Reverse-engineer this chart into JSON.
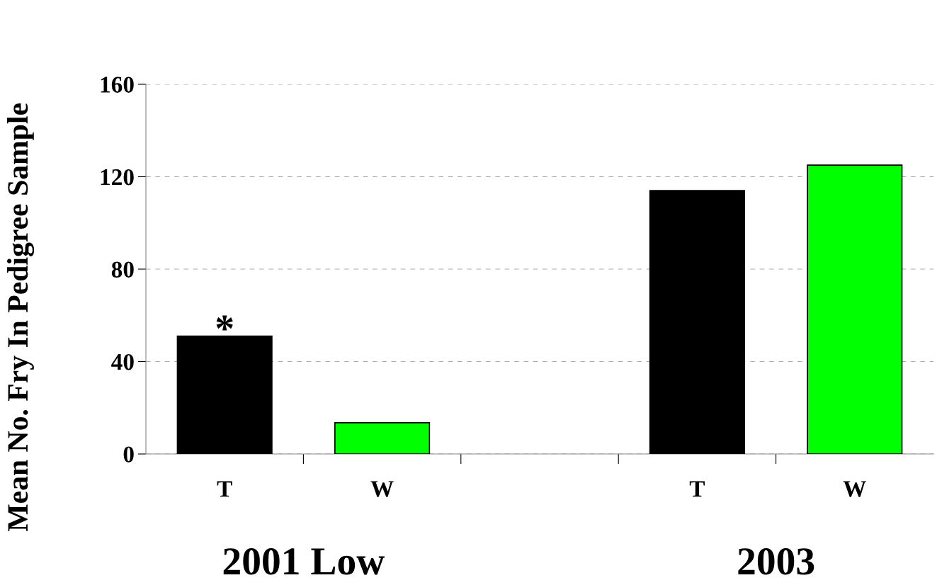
{
  "chart_data": {
    "type": "bar",
    "ylabel": "Mean No. Fry In Pedigree Sample",
    "categories": [
      "T",
      "W",
      null,
      "T",
      "W"
    ],
    "values": [
      51,
      13.5,
      null,
      114,
      125
    ],
    "colors": [
      "#000000",
      "#00ff00",
      "#000000",
      "#000000",
      "#00ff00"
    ],
    "ylim": [
      0,
      160
    ],
    "yticks": [
      0,
      40,
      80,
      120,
      160
    ],
    "grid": "y",
    "annotations": [
      {
        "text": "*",
        "x": "T",
        "y": 51
      },
      "2001 Low",
      "2003"
    ]
  }
}
